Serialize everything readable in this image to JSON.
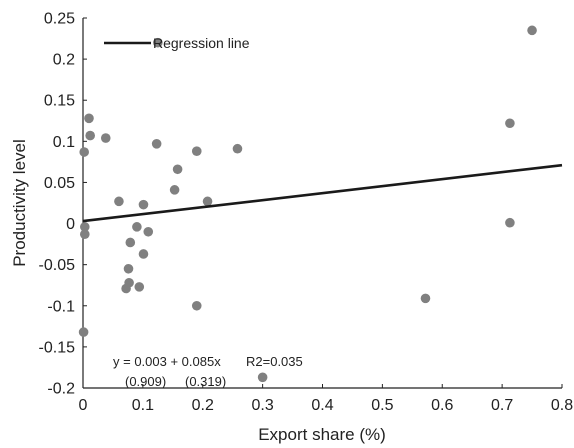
{
  "chart_data": {
    "type": "scatter",
    "xlabel": "Export share (%)",
    "ylabel": "Productivity level",
    "xlim": [
      0,
      0.8
    ],
    "ylim": [
      -0.2,
      0.25
    ],
    "xticks": [
      0,
      0.1,
      0.2,
      0.3,
      0.4,
      0.5,
      0.6,
      0.7,
      0.8
    ],
    "xtick_labels": [
      "0",
      "0.1",
      "0.2",
      "0.3",
      "0.4",
      "0.5",
      "0.6",
      "0.7",
      "0.8"
    ],
    "yticks": [
      0.25,
      0.2,
      0.15,
      0.1,
      0.05,
      0,
      -0.05,
      -0.1,
      -0.15,
      -0.2
    ],
    "ytick_labels": [
      "0.25",
      "0.2",
      "0.15",
      "0.1",
      "0.05",
      "0",
      "-0.05",
      "-0.1",
      "-0.15",
      "-0.2"
    ],
    "grid": false,
    "legend": {
      "label": "Regression line",
      "placement": "top-left"
    },
    "points": [
      {
        "x": 0.125,
        "y": 0.22
      },
      {
        "x": 0.75,
        "y": 0.235
      },
      {
        "x": 0.01,
        "y": 0.128
      },
      {
        "x": 0.012,
        "y": 0.107
      },
      {
        "x": 0.038,
        "y": 0.104
      },
      {
        "x": 0.002,
        "y": 0.087
      },
      {
        "x": 0.123,
        "y": 0.097
      },
      {
        "x": 0.19,
        "y": 0.088
      },
      {
        "x": 0.258,
        "y": 0.091
      },
      {
        "x": 0.158,
        "y": 0.066
      },
      {
        "x": 0.153,
        "y": 0.041
      },
      {
        "x": 0.208,
        "y": 0.027
      },
      {
        "x": 0.06,
        "y": 0.027
      },
      {
        "x": 0.101,
        "y": 0.023
      },
      {
        "x": 0.003,
        "y": -0.004
      },
      {
        "x": 0.003,
        "y": -0.013
      },
      {
        "x": 0.09,
        "y": -0.004
      },
      {
        "x": 0.109,
        "y": -0.01
      },
      {
        "x": 0.079,
        "y": -0.023
      },
      {
        "x": 0.101,
        "y": -0.037
      },
      {
        "x": 0.076,
        "y": -0.055
      },
      {
        "x": 0.077,
        "y": -0.072
      },
      {
        "x": 0.072,
        "y": -0.079
      },
      {
        "x": 0.094,
        "y": -0.077
      },
      {
        "x": 0.19,
        "y": -0.1
      },
      {
        "x": 0.001,
        "y": -0.132
      },
      {
        "x": 0.3,
        "y": -0.187
      },
      {
        "x": 0.572,
        "y": -0.091
      },
      {
        "x": 0.713,
        "y": 0.122
      },
      {
        "x": 0.713,
        "y": 0.001
      }
    ],
    "regression": {
      "intercept": 0.003,
      "slope": 0.085,
      "x_range": [
        0,
        0.8
      ]
    },
    "annotation": {
      "equation": "y = 0.003 + 0.085x",
      "r2": "R2=0.035",
      "intercept_p": "(0.909)",
      "slope_p": "(0.319)"
    },
    "colors": {
      "point": "#808080",
      "line": "#1a1a1a",
      "axis": "#222222",
      "text": "#222222"
    }
  }
}
